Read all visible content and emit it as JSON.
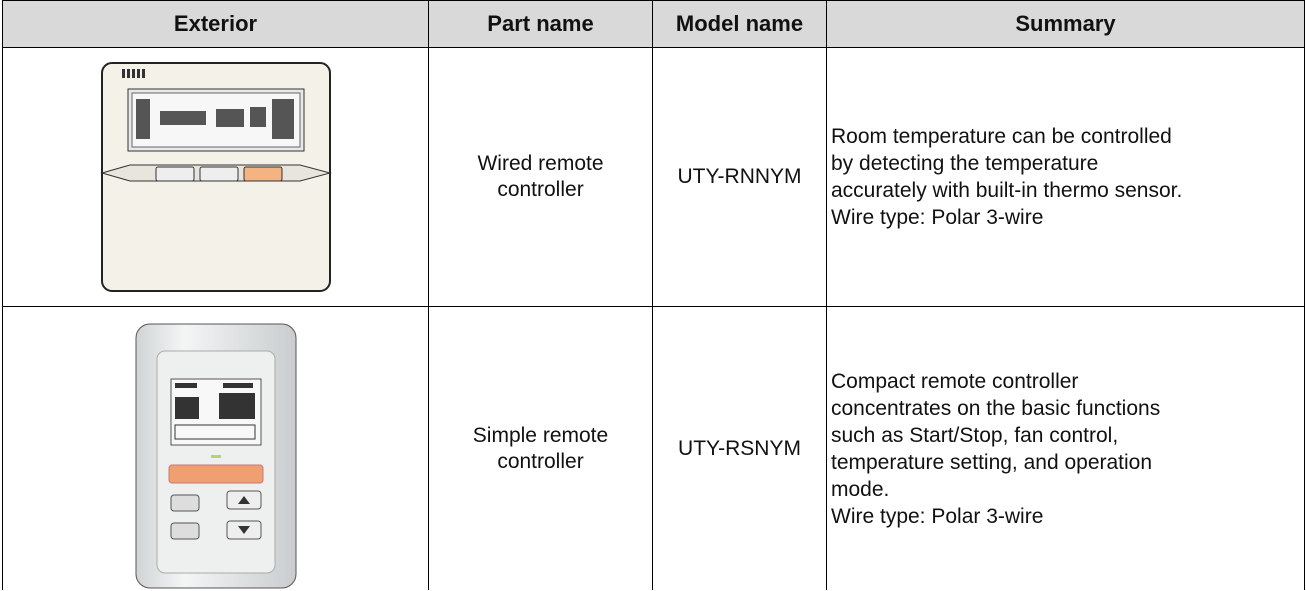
{
  "table": {
    "header": [
      "Exterior",
      "Part name",
      "Model name",
      "Summary"
    ],
    "rows": [
      {
        "part_name": "Wired remote controller",
        "model_name": "UTY-RNNYM",
        "summary": [
          "Room temperature can be controlled",
          "by detecting the temperature",
          "accurately with built-in thermo sensor.",
          "Wire type: Polar 3-wire"
        ]
      },
      {
        "part_name": "Simple remote controller",
        "model_name": "UTY-RSNYM",
        "summary": [
          "Compact remote controller",
          "concentrates on the basic functions",
          "such as Start/Stop, fan control,",
          "temperature setting, and operation",
          "mode.",
          "Wire type: Polar 3-wire"
        ]
      }
    ]
  }
}
